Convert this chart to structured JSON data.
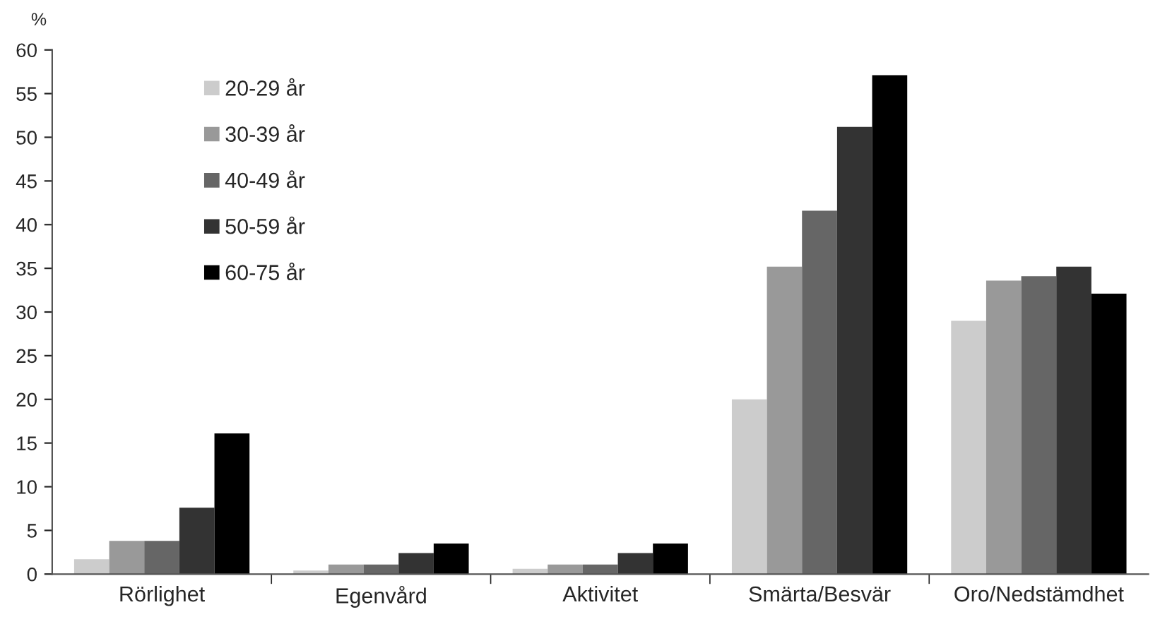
{
  "chart_data": {
    "type": "bar",
    "ylabel": "%",
    "categories": [
      "Rörlighet",
      "Egenvård",
      "Aktivitet",
      "Smärta/Besvär",
      "Oro/Nedstämdhet"
    ],
    "series": [
      {
        "name": "20-29 år",
        "color": "#cccccc",
        "values": [
          1.7,
          0.4,
          0.6,
          20,
          29
        ]
      },
      {
        "name": "30-39 år",
        "color": "#999999",
        "values": [
          3.8,
          1.1,
          1.1,
          35.2,
          33.6
        ]
      },
      {
        "name": "40-49 år",
        "color": "#666666",
        "values": [
          3.8,
          1.1,
          1.1,
          41.6,
          34.1
        ]
      },
      {
        "name": "50-59 år",
        "color": "#333333",
        "values": [
          7.6,
          2.4,
          2.4,
          51.2,
          35.2
        ]
      },
      {
        "name": "60-75 år",
        "color": "#000000",
        "values": [
          16.1,
          3.5,
          3.5,
          57.1,
          32.1
        ]
      }
    ],
    "ylim": [
      0,
      60
    ],
    "yticks": [
      0,
      5,
      10,
      15,
      20,
      25,
      30,
      35,
      40,
      45,
      50,
      55,
      60
    ],
    "grid": false,
    "legend": "top left"
  }
}
